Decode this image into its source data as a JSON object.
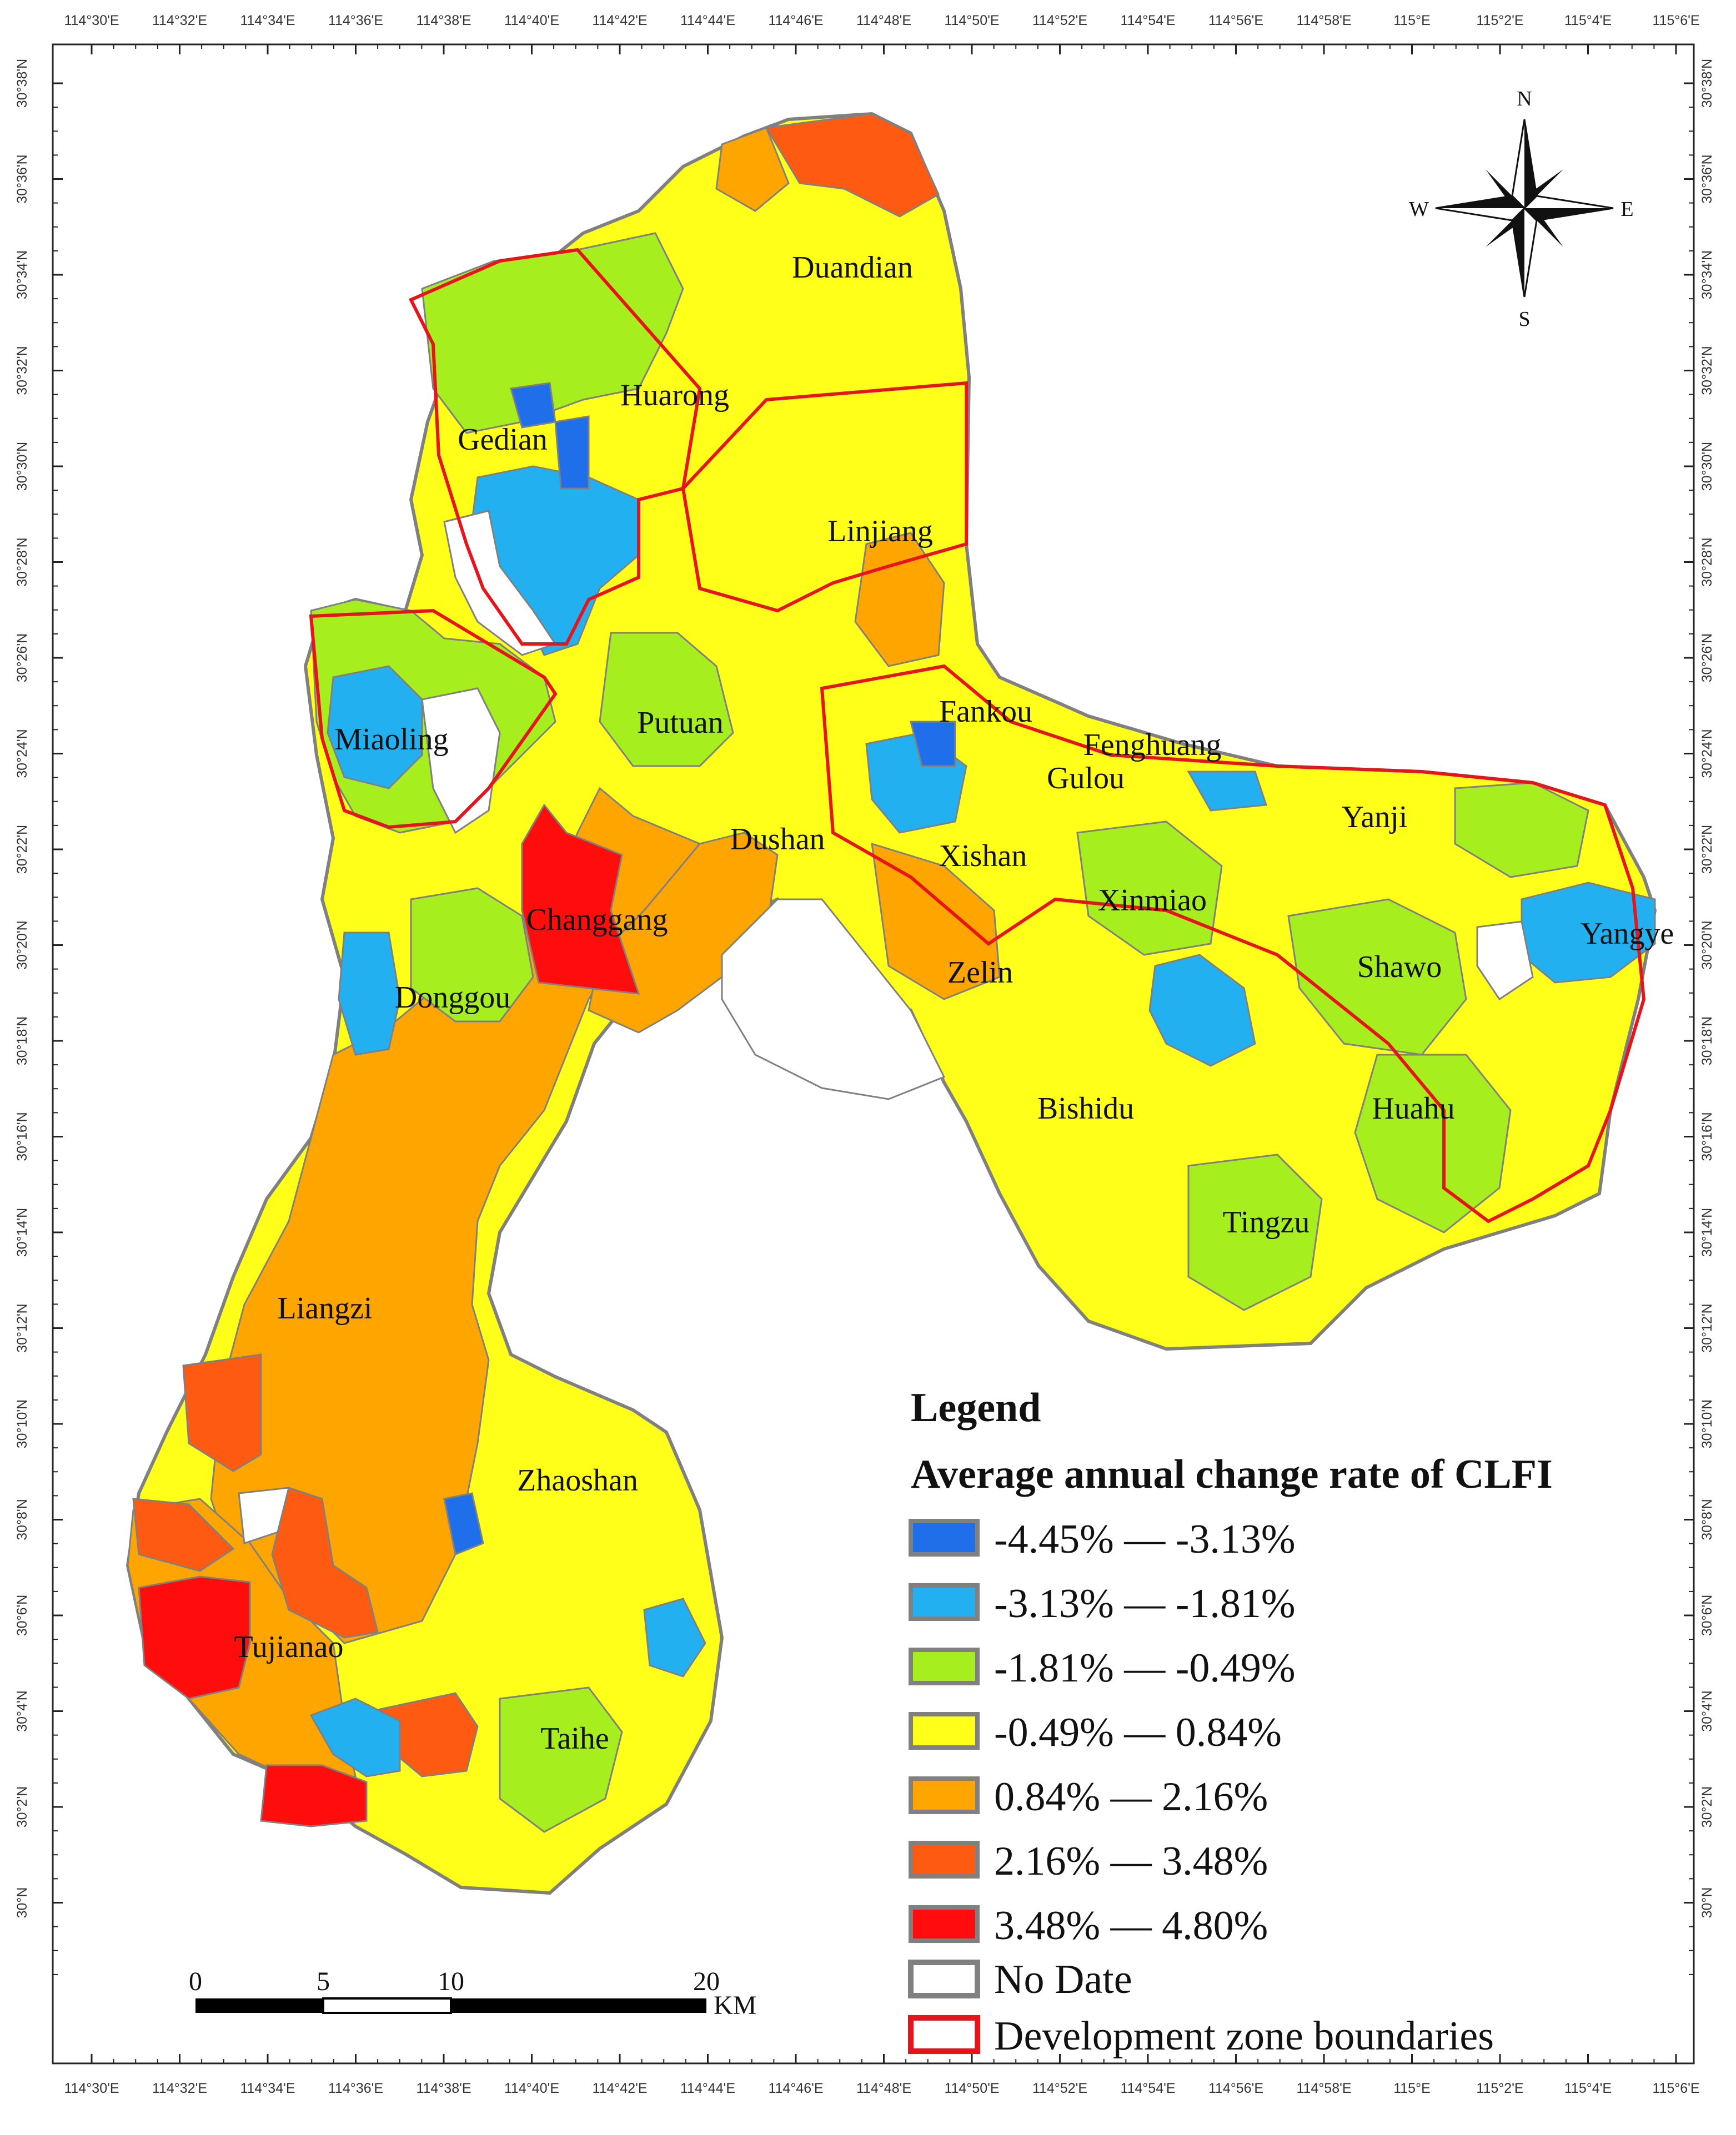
{
  "map": {
    "coordinates": {
      "longitude_labels": [
        "114°30'E",
        "114°32'E",
        "114°34'E",
        "114°36'E",
        "114°38'E",
        "114°40'E",
        "114°42'E",
        "114°44'E",
        "114°46'E",
        "114°48'E",
        "114°50'E",
        "114°52'E",
        "114°54'E",
        "114°56'E",
        "114°58'E",
        "115°E",
        "115°2'E",
        "115°4'E",
        "115°6'E"
      ],
      "latitude_labels": [
        "30°38'N",
        "30°36'N",
        "30°34'N",
        "30°32'N",
        "30°30'N",
        "30°28'N",
        "30°26'N",
        "30°24'N",
        "30°22'N",
        "30°20'N",
        "30°18'N",
        "30°16'N",
        "30°14'N",
        "30°12'N",
        "30°10'N",
        "30°8'N",
        "30°6'N",
        "30°4'N",
        "30°2'N",
        "30°N"
      ]
    },
    "places": [
      "Duandian",
      "Huarong",
      "Gedian",
      "Linjiang",
      "Fankou",
      "Fenghuang",
      "Gulou",
      "Putuan",
      "Miaoling",
      "Yanji",
      "Dushan",
      "Xishan",
      "Changgang",
      "Xinmiao",
      "Yangye",
      "Shawo",
      "Zelin",
      "Donggou",
      "Bishidu",
      "Huahu",
      "Tingzu",
      "Liangzi",
      "Zhaoshan",
      "Tujianao",
      "Taihe"
    ],
    "compass": {
      "n": "N",
      "s": "S",
      "e": "E",
      "w": "W"
    },
    "scale_bar": {
      "ticks": [
        "0",
        "5",
        "10",
        "20"
      ],
      "unit": "KM"
    }
  },
  "legend": {
    "title": "Legend",
    "subtitle": "Average annual change rate of CLFI",
    "classes": [
      {
        "label": "-4.45% — -3.13%",
        "color": "#1F6FEA"
      },
      {
        "label": "-3.13% — -1.81%",
        "color": "#22B0F0"
      },
      {
        "label": "-1.81% — -0.49%",
        "color": "#A6EE1E"
      },
      {
        "label": "-0.49% — 0.84%",
        "color": "#FFFF1A"
      },
      {
        "label": "0.84% — 2.16%",
        "color": "#FFA500"
      },
      {
        "label": "2.16% — 3.48%",
        "color": "#FF5A12"
      },
      {
        "label": "3.48% — 4.80%",
        "color": "#FF0D0D"
      }
    ],
    "no_data": {
      "label": "No Date",
      "color": "#808080"
    },
    "dev_zone": {
      "label": "Development zone boundaries",
      "color": "#E8141B"
    }
  }
}
